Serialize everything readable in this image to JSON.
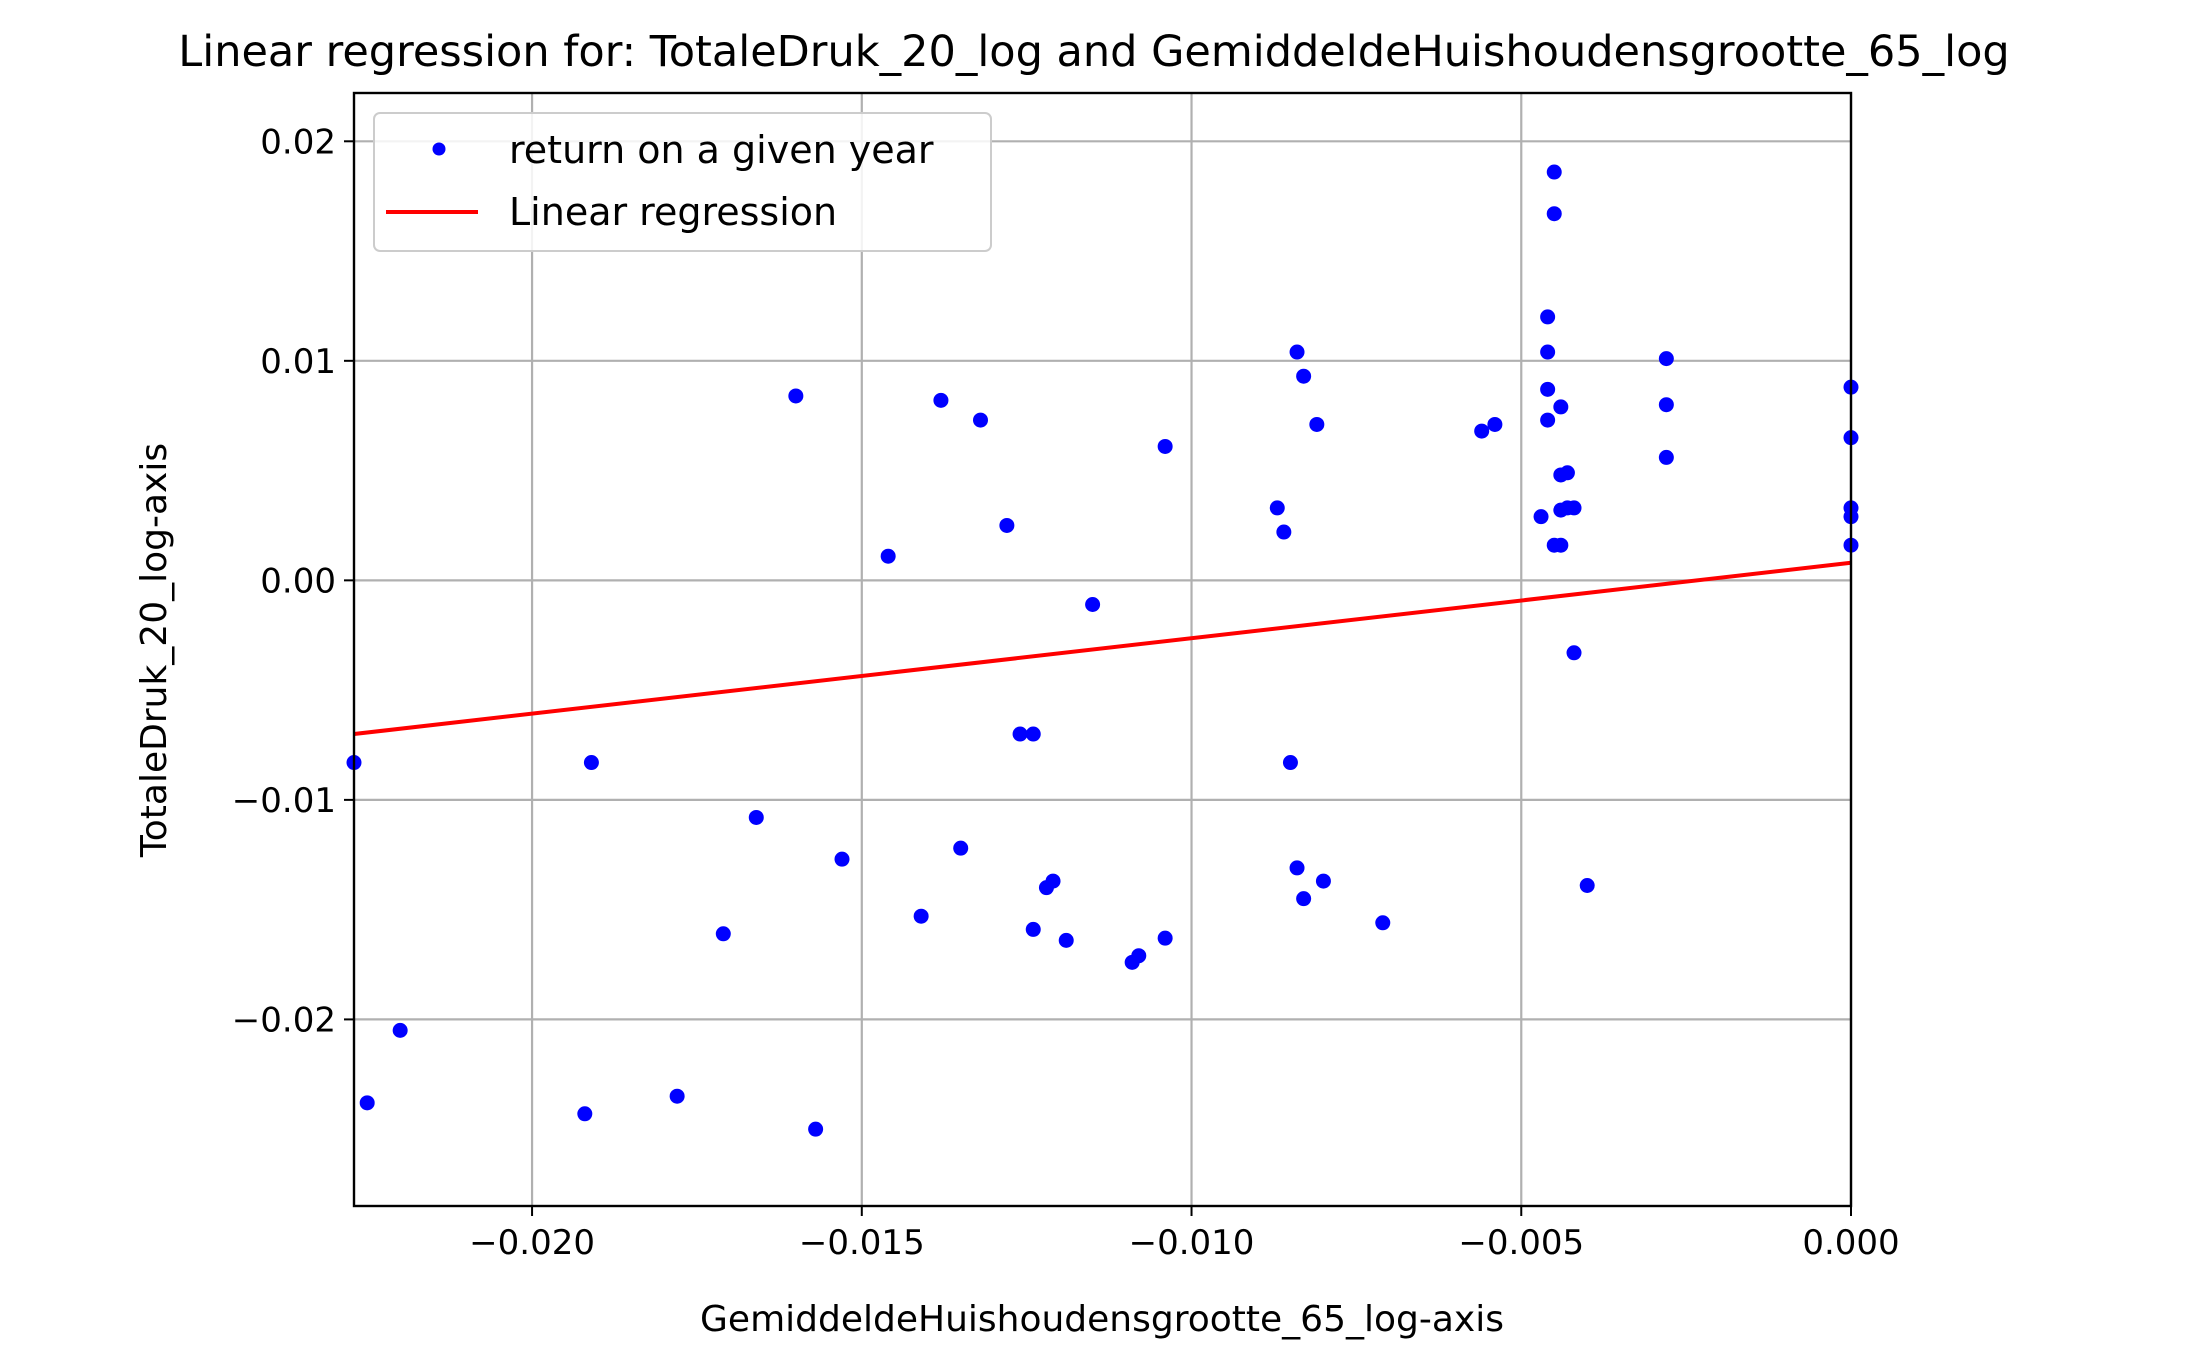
{
  "chart_data": {
    "type": "scatter",
    "title": "Linear regression for: TotaleDruk_20_log and GemiddeldeHuishoudensgrootte_65_log",
    "xlabel": "GemiddeldeHuishoudensgrootte_65_log-axis",
    "ylabel": "TotaleDruk_20_log-axis",
    "xlim": [
      -0.0227,
      0.0
    ],
    "ylim": [
      -0.0285,
      0.0222
    ],
    "xticks": [
      -0.02,
      -0.015,
      -0.01,
      -0.005,
      0.0
    ],
    "xtick_labels": [
      "−0.020",
      "−0.015",
      "−0.010",
      "−0.005",
      "0.000"
    ],
    "yticks": [
      0.02,
      0.01,
      0.0,
      -0.01,
      -0.02
    ],
    "ytick_labels": [
      "0.02",
      "0.01",
      "0.00",
      "−0.01",
      "−0.02"
    ],
    "grid": true,
    "legend_position": "top-left",
    "series": [
      {
        "name": "return on a given year",
        "kind": "scatter",
        "color": "#0000ff",
        "points": [
          [
            -0.0227,
            -0.0083
          ],
          [
            -0.0225,
            -0.0238
          ],
          [
            -0.022,
            -0.0205
          ],
          [
            -0.0192,
            -0.0243
          ],
          [
            -0.0191,
            -0.0083
          ],
          [
            -0.0178,
            -0.0235
          ],
          [
            -0.0171,
            -0.0161
          ],
          [
            -0.0166,
            -0.0108
          ],
          [
            -0.016,
            0.0084
          ],
          [
            -0.0157,
            -0.025
          ],
          [
            -0.0153,
            -0.0127
          ],
          [
            -0.0146,
            0.0011
          ],
          [
            -0.0141,
            -0.0153
          ],
          [
            -0.0138,
            0.0082
          ],
          [
            -0.0135,
            -0.0122
          ],
          [
            -0.0132,
            0.0073
          ],
          [
            -0.0128,
            0.0025
          ],
          [
            -0.0126,
            -0.007
          ],
          [
            -0.0124,
            -0.007
          ],
          [
            -0.0124,
            -0.0159
          ],
          [
            -0.0122,
            -0.014
          ],
          [
            -0.0121,
            -0.0137
          ],
          [
            -0.0119,
            -0.0164
          ],
          [
            -0.0115,
            -0.0011
          ],
          [
            -0.0109,
            -0.0174
          ],
          [
            -0.0108,
            -0.0171
          ],
          [
            -0.0104,
            -0.0163
          ],
          [
            -0.0104,
            0.0061
          ],
          [
            -0.0087,
            0.0033
          ],
          [
            -0.0086,
            0.0022
          ],
          [
            -0.0085,
            -0.0083
          ],
          [
            -0.0084,
            0.0104
          ],
          [
            -0.0084,
            -0.0131
          ],
          [
            -0.0083,
            0.0093
          ],
          [
            -0.0083,
            -0.0145
          ],
          [
            -0.0081,
            0.0071
          ],
          [
            -0.008,
            -0.0137
          ],
          [
            -0.0071,
            -0.0156
          ],
          [
            -0.0056,
            0.0068
          ],
          [
            -0.0054,
            0.0071
          ],
          [
            -0.0047,
            0.0029
          ],
          [
            -0.0046,
            0.0087
          ],
          [
            -0.0046,
            0.0073
          ],
          [
            -0.0046,
            0.0104
          ],
          [
            -0.0046,
            0.012
          ],
          [
            -0.0045,
            0.0167
          ],
          [
            -0.0045,
            0.0186
          ],
          [
            -0.0045,
            0.0016
          ],
          [
            -0.0044,
            0.0079
          ],
          [
            -0.0044,
            0.0048
          ],
          [
            -0.0044,
            0.0032
          ],
          [
            -0.0044,
            0.0016
          ],
          [
            -0.0043,
            0.0049
          ],
          [
            -0.0043,
            0.0033
          ],
          [
            -0.0042,
            0.0033
          ],
          [
            -0.0042,
            -0.0033
          ],
          [
            -0.004,
            -0.0139
          ],
          [
            -0.0028,
            0.0101
          ],
          [
            -0.0028,
            0.008
          ],
          [
            -0.0028,
            0.0056
          ],
          [
            0.0,
            0.0088
          ],
          [
            0.0,
            0.0065
          ],
          [
            0.0,
            0.0033
          ],
          [
            0.0,
            0.0029
          ],
          [
            0.0,
            0.0016
          ]
        ]
      },
      {
        "name": "Linear regression",
        "kind": "line",
        "color": "#ff0000",
        "x": [
          -0.0227,
          0.0
        ],
        "y": [
          -0.007,
          0.0008
        ]
      }
    ]
  }
}
